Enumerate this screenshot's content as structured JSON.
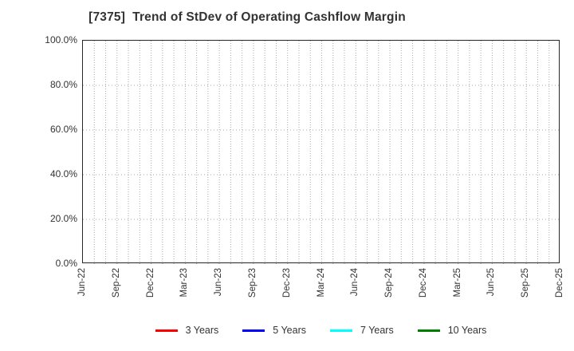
{
  "title": "[7375]  Trend of StDev of Operating Cashflow Margin",
  "chart_data": {
    "type": "line",
    "title": "[7375]  Trend of StDev of Operating Cashflow Margin",
    "xlabel": "",
    "ylabel": "",
    "ylim": [
      0,
      100
    ],
    "y_tick_labels": [
      "0.0%",
      "20.0%",
      "40.0%",
      "60.0%",
      "80.0%",
      "100.0%"
    ],
    "x_tick_labels": [
      "Jun-22",
      "Sep-22",
      "Dec-22",
      "Mar-23",
      "Jun-23",
      "Sep-23",
      "Dec-23",
      "Mar-24",
      "Jun-24",
      "Sep-24",
      "Dec-24",
      "Mar-25",
      "Jun-25",
      "Sep-25",
      "Dec-25"
    ],
    "months_per_labeled_tick": 3,
    "total_month_intervals": 42,
    "grid": true,
    "grid_style": "dotted",
    "grid_color": "#aaaaaa",
    "legend_position": "bottom-center",
    "series": [
      {
        "name": "3 Years",
        "color": "#ff0000",
        "values": []
      },
      {
        "name": "5 Years",
        "color": "#0000ff",
        "values": []
      },
      {
        "name": "7 Years",
        "color": "#00ffff",
        "values": []
      },
      {
        "name": "10 Years",
        "color": "#008000",
        "values": []
      }
    ],
    "plot_area_empty": true
  },
  "colors": {
    "background": "#ffffff",
    "plot_border": "#262626",
    "text": "#333333"
  }
}
